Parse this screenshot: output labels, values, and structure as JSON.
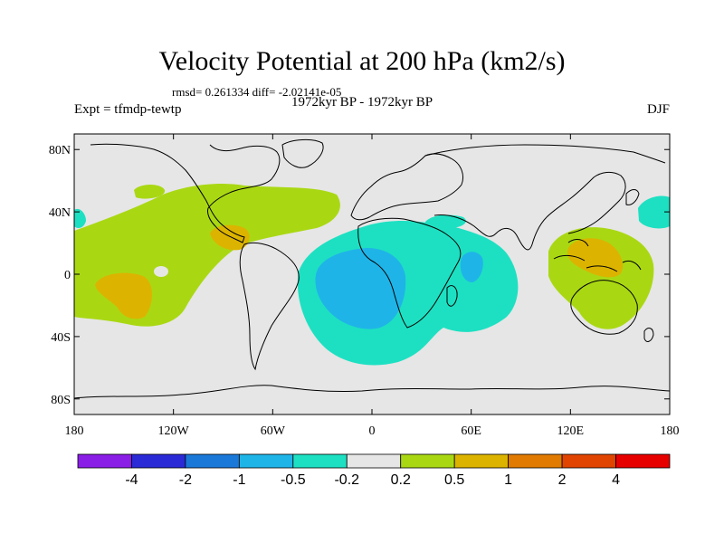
{
  "chart_data": {
    "type": "heatmap",
    "title": "Velocity Potential at 200 hPa (km2/s)",
    "stats_line": "rmsd= 0.261334 diff= -2.02141e-05",
    "left_label": "Expt = tfmdp-tewtp",
    "center_label": "1972kyr BP - 1972kyr BP",
    "right_label": "DJF",
    "projection": "cylindrical equidistant",
    "lon_range": [
      -180,
      180
    ],
    "lat_range": [
      -90,
      90
    ],
    "x_ticks": [
      {
        "value": -180,
        "label": "180"
      },
      {
        "value": -120,
        "label": "120W"
      },
      {
        "value": -60,
        "label": "60W"
      },
      {
        "value": 0,
        "label": "0"
      },
      {
        "value": 60,
        "label": "60E"
      },
      {
        "value": 120,
        "label": "120E"
      },
      {
        "value": 180,
        "label": "180"
      }
    ],
    "y_ticks": [
      {
        "value": 80,
        "label": "80N"
      },
      {
        "value": 40,
        "label": "40N"
      },
      {
        "value": 0,
        "label": "0"
      },
      {
        "value": -40,
        "label": "40S"
      },
      {
        "value": -80,
        "label": "80S"
      }
    ],
    "colorbar": {
      "levels": [
        "-4",
        "-2",
        "-1",
        "-0.5",
        "-0.2",
        "0.2",
        "0.5",
        "1",
        "2",
        "4"
      ],
      "colors": [
        "#8a1ee6",
        "#2a2ad6",
        "#1a78d8",
        "#1fb4e8",
        "#1de0c2",
        "#e6e6e6",
        "#a9d813",
        "#dcb400",
        "#e07a00",
        "#e04400",
        "#e60000"
      ]
    },
    "regions": [
      {
        "name": "positive-band-pacific-atlantic",
        "class": "0.2-0.5",
        "description": "tropical/subtropical positive band from central Pacific to North Atlantic"
      },
      {
        "name": "positive-center-south-pacific",
        "class": "0.5-1"
      },
      {
        "name": "positive-center-caribbean",
        "class": "0.5-1"
      },
      {
        "name": "negative-band-atlantic-indian",
        "class": "-0.5 to -0.2"
      },
      {
        "name": "negative-center-south-atlantic-africa",
        "class": "-1 to -0.5"
      },
      {
        "name": "negative-center-east-africa",
        "class": "-1 to -0.5"
      },
      {
        "name": "positive-west-pacific",
        "class": "0.2-0.5"
      },
      {
        "name": "positive-center-maritime-continent",
        "class": "0.5-1"
      }
    ]
  }
}
